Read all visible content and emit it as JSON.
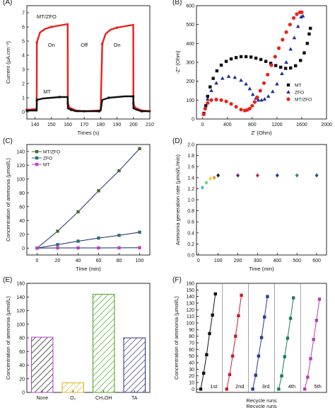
{
  "chart_data": [
    {
      "type": "line",
      "panel_label": "(A)",
      "xlabel": "Times (s)",
      "ylabel": "Current (μA.cm⁻²)",
      "xlim": [
        135,
        210
      ],
      "ylim": [
        -0.5,
        7.5
      ],
      "xticks": [
        "140",
        "150",
        "160",
        "170",
        "180",
        "190",
        "200",
        "210"
      ],
      "yticks": [
        "0",
        "1",
        "2",
        "3",
        "4",
        "5",
        "6",
        "7"
      ],
      "annotations": [
        "On",
        "Off",
        "On"
      ],
      "series": [
        {
          "name": "MT/ZFO",
          "color": "#e8221a",
          "x": [
            135,
            140,
            141,
            141.1,
            143,
            146,
            150,
            155,
            159.9,
            160,
            161,
            165,
            170,
            179,
            180,
            181,
            183,
            186,
            190,
            195,
            199.9,
            200,
            201,
            205,
            210
          ],
          "y": [
            0.15,
            0.2,
            0.2,
            4.9,
            5.6,
            5.85,
            6.0,
            6.1,
            6.2,
            0.6,
            0.3,
            0.1,
            0.05,
            0.1,
            0.1,
            4.8,
            5.5,
            5.8,
            5.95,
            6.05,
            6.15,
            0.6,
            0.3,
            0.1,
            0.05
          ]
        },
        {
          "name": "MT",
          "color": "#111111",
          "x": [
            135,
            140,
            141,
            141.1,
            145,
            150,
            155,
            159.9,
            160,
            162,
            165,
            170,
            179,
            180,
            181,
            185,
            190,
            195,
            199.9,
            200,
            202,
            205,
            210
          ],
          "y": [
            0.1,
            0.1,
            0.1,
            0.85,
            0.95,
            1.0,
            1.05,
            1.05,
            0.25,
            0.15,
            0.05,
            0.05,
            0.05,
            0.1,
            0.85,
            1.0,
            1.05,
            1.1,
            1.1,
            0.25,
            0.15,
            0.05,
            0.05
          ]
        }
      ]
    },
    {
      "type": "scatter",
      "panel_label": "(B)",
      "xlabel": "Z' (Ohm)",
      "ylabel": "-Z'' (Ohm)",
      "xlim": [
        -100,
        2000
      ],
      "ylim": [
        0,
        600
      ],
      "xticks": [
        "0",
        "400",
        "800",
        "1200",
        "1600",
        "2000"
      ],
      "yticks": [
        "0",
        "100",
        "200",
        "300",
        "400",
        "500",
        "600"
      ],
      "series": [
        {
          "name": "MT",
          "marker": "square",
          "color": "#111111",
          "x": [
            20,
            50,
            80,
            120,
            170,
            230,
            300,
            380,
            460,
            540,
            620,
            700,
            780,
            860,
            940,
            1020,
            1100,
            1180,
            1260,
            1340,
            1420,
            1500,
            1580,
            1640,
            1690,
            1720,
            1740
          ],
          "y": [
            30,
            70,
            120,
            170,
            215,
            255,
            285,
            305,
            318,
            325,
            330,
            330,
            328,
            322,
            315,
            305,
            295,
            283,
            274,
            268,
            270,
            282,
            310,
            350,
            400,
            450,
            480
          ]
        },
        {
          "name": "ZFO",
          "marker": "triangle",
          "color": "#1f2f8c",
          "x": [
            15,
            40,
            80,
            140,
            220,
            320,
            420,
            520,
            620,
            700,
            760,
            810,
            860,
            900,
            950,
            1000,
            1060,
            1130,
            1200,
            1280,
            1350,
            1420,
            1480,
            1540,
            1590,
            1620
          ],
          "y": [
            25,
            60,
            105,
            150,
            190,
            215,
            225,
            220,
            205,
            185,
            160,
            130,
            110,
            100,
            100,
            105,
            120,
            145,
            185,
            240,
            300,
            370,
            430,
            490,
            540,
            545
          ]
        },
        {
          "name": "MT/ZFO",
          "marker": "circle",
          "color": "#e8221a",
          "x": [
            15,
            40,
            80,
            140,
            220,
            300,
            380,
            460,
            540,
            620,
            680,
            720,
            760,
            800,
            840,
            880,
            930,
            990,
            1050,
            1110,
            1170,
            1230,
            1290,
            1350,
            1410,
            1470,
            1520,
            1570,
            1600
          ],
          "y": [
            25,
            55,
            85,
            100,
            103,
            100,
            93,
            80,
            65,
            50,
            45,
            48,
            55,
            70,
            90,
            115,
            150,
            190,
            235,
            285,
            330,
            375,
            420,
            460,
            500,
            535,
            555,
            565,
            565
          ]
        }
      ]
    },
    {
      "type": "line",
      "panel_label": "(C)",
      "xlabel": "Time (min)",
      "ylabel": "Concentration of ammonia (μmol/L)",
      "xlim": [
        -10,
        110
      ],
      "ylim": [
        -10,
        150
      ],
      "xticks": [
        "0",
        "20",
        "40",
        "60",
        "80",
        "100"
      ],
      "yticks": [
        "0",
        "20",
        "40",
        "60",
        "80",
        "100",
        "120",
        "140"
      ],
      "x": [
        0,
        20,
        40,
        60,
        80,
        100
      ],
      "series": [
        {
          "name": "MT/ZFO",
          "color": "#4a6b2a",
          "values": [
            0,
            24.5,
            52.5,
            83,
            112,
            144
          ]
        },
        {
          "name": "ZFO",
          "color": "#2a6f7a",
          "values": [
            0,
            5,
            10,
            14.5,
            18.5,
            23
          ]
        },
        {
          "name": "MT",
          "color": "#c040c0",
          "values": [
            0,
            0.2,
            0.3,
            0.3,
            0.4,
            0.5
          ]
        }
      ]
    },
    {
      "type": "scatter",
      "panel_label": "(D)",
      "xlabel": "Time (min)",
      "ylabel": "Ammonia generation rate (μmol/L/min)",
      "xlim": [
        -10,
        650
      ],
      "ylim": [
        0,
        2
      ],
      "xticks": [
        "0",
        "100",
        "200",
        "300",
        "400",
        "500",
        "600"
      ],
      "yticks": [
        "0.0",
        "0.2",
        "0.4",
        "0.6",
        "0.8",
        "1.0",
        "1.2",
        "1.4",
        "1.6",
        "1.8",
        "2.0"
      ],
      "x": [
        20,
        40,
        60,
        80,
        100,
        200,
        300,
        400,
        500,
        600
      ],
      "values": [
        1.22,
        1.31,
        1.38,
        1.4,
        1.44,
        1.44,
        1.44,
        1.44,
        1.44,
        1.44
      ],
      "colors": [
        "#3bb8e0",
        "#6ad07a",
        "#f0d22a",
        "#f08a2a",
        "#222222",
        "#6a2080",
        "#c02050",
        "#1a3a8a",
        "#2a8a6a",
        "#2a4a90"
      ]
    },
    {
      "type": "bar",
      "panel_label": "(E)",
      "xlabel": "",
      "ylabel": "Concentration of ammonia (μmol/L)",
      "ylim": [
        0,
        160
      ],
      "yticks": [
        "0",
        "20",
        "40",
        "60",
        "80",
        "100",
        "120",
        "140",
        "160"
      ],
      "categories": [
        "None",
        "O₂",
        "CH₃OH",
        "TA"
      ],
      "values": [
        81,
        14,
        144,
        80
      ],
      "bar_colors": [
        "#111111",
        "#e0b020",
        "#4aa020",
        "#303080"
      ],
      "border_colors": [
        "#b040c0",
        "#e0b020",
        "#4aa020",
        "#303080"
      ]
    },
    {
      "type": "line",
      "panel_label": "(F)",
      "xlabel": "Recycle runs",
      "ylabel": "Concentration of ammonia (μmol/L)",
      "ylim": [
        -5,
        160
      ],
      "yticks": [
        "0",
        "10",
        "20",
        "30",
        "40",
        "50",
        "60",
        "70",
        "80",
        "90",
        "100",
        "110",
        "120",
        "130",
        "140",
        "150",
        "160"
      ],
      "run_labels": [
        "1st",
        "2nd",
        "3rd",
        "4th",
        "5th"
      ],
      "series": [
        {
          "name": "1st",
          "color": "#111111",
          "values": [
            0,
            24,
            52,
            84,
            112,
            144
          ]
        },
        {
          "name": "2nd",
          "color": "#c02030",
          "values": [
            0,
            22,
            50,
            80,
            111,
            142
          ]
        },
        {
          "name": "3rd",
          "color": "#2a3a8a",
          "values": [
            0,
            21,
            50,
            78,
            109,
            140
          ]
        },
        {
          "name": "4th",
          "color": "#1a7a5a",
          "values": [
            0,
            20,
            49,
            77,
            107,
            138
          ]
        },
        {
          "name": "5th",
          "color": "#b040b0",
          "values": [
            0,
            18,
            46,
            75,
            104,
            136
          ]
        }
      ]
    }
  ]
}
